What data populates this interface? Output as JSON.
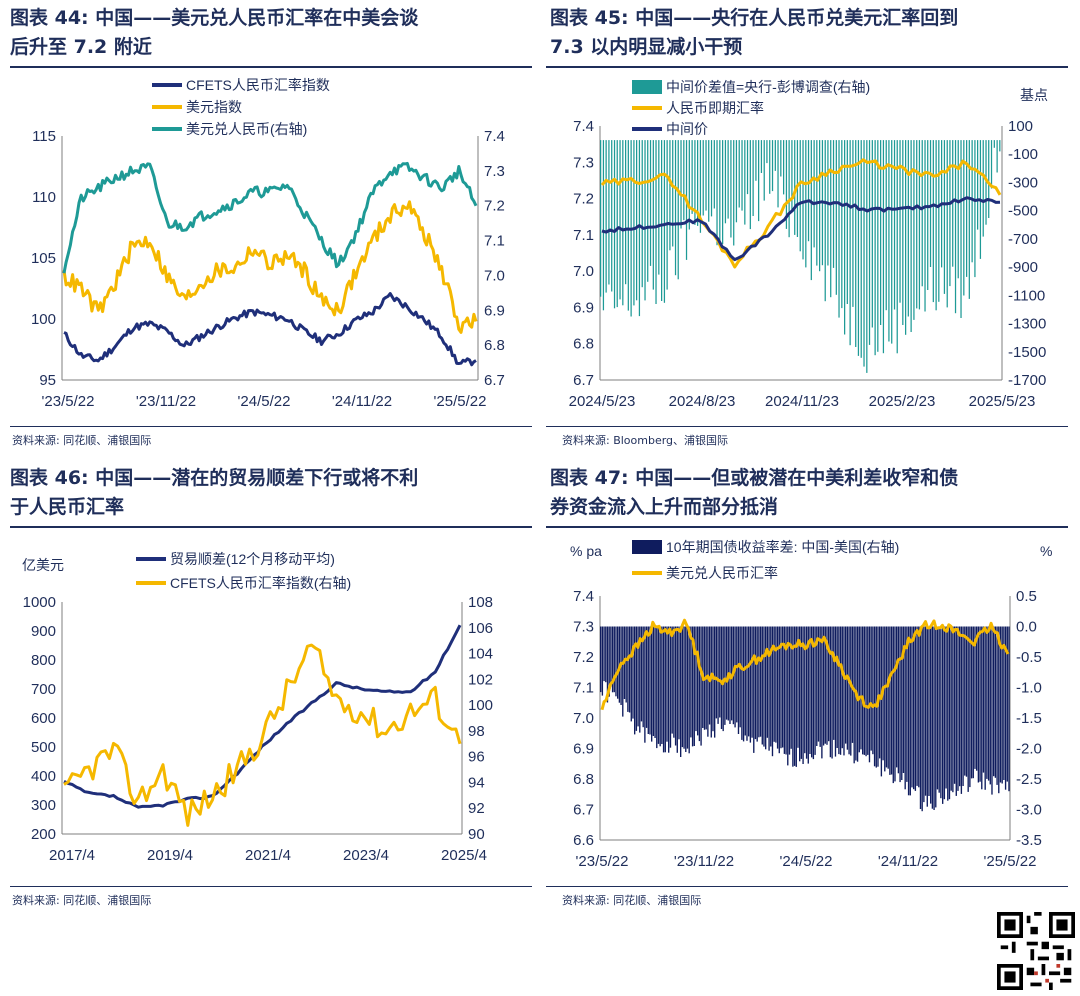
{
  "charts": [
    {
      "title_prefix": "图表 44:",
      "title_line1": "中国——美元兑人民币汇率在中美会谈",
      "title_line2": "后升至 7.2 附近",
      "source": "资料来源: 同花顺、浦银国际",
      "legend": [
        {
          "label": "CFETS人民币汇率指数",
          "color": "#1f2f7a"
        },
        {
          "label": "美元指数",
          "color": "#f5b800"
        },
        {
          "label": "美元兑人民币(右轴)",
          "color": "#1e9a96"
        }
      ],
      "left_ticks": [
        "115",
        "110",
        "105",
        "100",
        "95"
      ],
      "right_ticks": [
        "7.4",
        "7.3",
        "7.2",
        "7.1",
        "7.0",
        "6.9",
        "6.8",
        "6.7"
      ],
      "x_ticks": [
        "'23/5/22",
        "'23/11/22",
        "'24/5/22",
        "'24/11/22",
        "'25/5/22"
      ]
    },
    {
      "title_prefix": "图表 45:",
      "title_line1": "中国——央行在人民币兑美元汇率回到",
      "title_line2": "7.3 以内明显减小干预",
      "source": "资料来源: Bloomberg、浦银国际",
      "legend": [
        {
          "label": "中间价差值=央行-彭博调查(右轴)",
          "color": "#1e9a96"
        },
        {
          "label": "人民币即期汇率",
          "color": "#f5b800"
        },
        {
          "label": "中间价",
          "color": "#1f2f7a"
        }
      ],
      "right_unit": "基点",
      "left_ticks": [
        "7.4",
        "7.3",
        "7.2",
        "7.1",
        "7.0",
        "6.9",
        "6.8",
        "6.7"
      ],
      "right_ticks": [
        "100",
        "-100",
        "-300",
        "-500",
        "-700",
        "-900",
        "-1100",
        "-1300",
        "-1500",
        "-1700"
      ],
      "x_ticks": [
        "2024/5/23",
        "2024/8/23",
        "2024/11/23",
        "2025/2/23",
        "2025/5/23"
      ]
    },
    {
      "title_prefix": "图表 46:",
      "title_line1": "中国——潜在的贸易顺差下行或将不利",
      "title_line2": "于人民币汇率",
      "source": "资料来源: 同花顺、浦银国际",
      "left_unit": "亿美元",
      "legend": [
        {
          "label": "贸易顺差(12个月移动平均)",
          "color": "#1f2f7a"
        },
        {
          "label": "CFETS人民币汇率指数(右轴)",
          "color": "#f5b800"
        }
      ],
      "left_ticks": [
        "1000",
        "900",
        "800",
        "700",
        "600",
        "500",
        "400",
        "300",
        "200"
      ],
      "right_ticks": [
        "108",
        "106",
        "104",
        "102",
        "100",
        "98",
        "96",
        "94",
        "92",
        "90"
      ],
      "x_ticks": [
        "2017/4",
        "2019/4",
        "2021/4",
        "2023/4",
        "2025/4"
      ]
    },
    {
      "title_prefix": "图表 47:",
      "title_line1": "中国——但或被潜在中美利差收窄和债",
      "title_line2": "券资金流入上升而部分抵消",
      "source": "资料来源: 同花顺、浦银国际",
      "left_unit": "% pa",
      "right_unit": "%",
      "legend": [
        {
          "label": "10年期国债收益率差: 中国-美国(右轴)",
          "color": "#0f1c5e"
        },
        {
          "label": "美元兑人民币汇率",
          "color": "#f5b800"
        }
      ],
      "left_ticks": [
        "7.4",
        "7.3",
        "7.2",
        "7.1",
        "7.0",
        "6.9",
        "6.8",
        "6.7",
        "6.6"
      ],
      "right_ticks": [
        "0.5",
        "0.0",
        "-0.5",
        "-1.0",
        "-1.5",
        "-2.0",
        "-2.5",
        "-3.0",
        "-3.5"
      ],
      "x_ticks": [
        "'23/5/22",
        "'23/11/22",
        "'24/5/22",
        "'24/11/22",
        "'25/5/22"
      ]
    }
  ],
  "chart_data": [
    {
      "type": "line",
      "x": [
        "2023-05",
        "2023-06",
        "2023-07",
        "2023-08",
        "2023-09",
        "2023-10",
        "2023-11",
        "2023-12",
        "2024-01",
        "2024-02",
        "2024-03",
        "2024-04",
        "2024-05",
        "2024-06",
        "2024-07",
        "2024-08",
        "2024-09",
        "2024-10",
        "2024-11",
        "2024-12",
        "2025-01",
        "2025-02",
        "2025-03",
        "2025-04",
        "2025-05"
      ],
      "series": [
        {
          "name": "CFETS人民币汇率指数",
          "axis": "left",
          "values": [
            98.8,
            97.0,
            96.6,
            97.8,
            99.3,
            99.6,
            99.0,
            97.8,
            98.6,
            99.4,
            100.1,
            100.6,
            100.3,
            100.0,
            99.0,
            98.2,
            98.8,
            99.9,
            100.6,
            101.9,
            101.0,
            99.9,
            98.6,
            96.3,
            96.6
          ]
        },
        {
          "name": "美元指数",
          "axis": "left",
          "values": [
            103.5,
            102.5,
            100.5,
            103.0,
            106.0,
            106.5,
            103.5,
            101.5,
            103.0,
            104.0,
            104.2,
            105.8,
            104.5,
            105.2,
            104.0,
            101.5,
            100.8,
            103.8,
            106.5,
            108.5,
            109.5,
            107.0,
            104.0,
            99.5,
            99.8
          ]
        },
        {
          "name": "美元兑人民币(右轴)",
          "axis": "right",
          "values": [
            7.02,
            7.22,
            7.25,
            7.28,
            7.3,
            7.31,
            7.15,
            7.14,
            7.17,
            7.19,
            7.21,
            7.24,
            7.24,
            7.26,
            7.18,
            7.1,
            7.03,
            7.12,
            7.24,
            7.3,
            7.31,
            7.28,
            7.25,
            7.3,
            7.2
          ]
        }
      ],
      "left_ylim": [
        95,
        115
      ],
      "right_ylim": [
        6.7,
        7.4
      ]
    },
    {
      "type": "line",
      "x": [
        "2024-05",
        "2024-06",
        "2024-07",
        "2024-08",
        "2024-09",
        "2024-10",
        "2024-11",
        "2024-12",
        "2025-01",
        "2025-02",
        "2025-03",
        "2025-04",
        "2025-05"
      ],
      "series": [
        {
          "name": "中间价差值=央行-彭博调查(右轴)",
          "axis": "right",
          "type": "bar",
          "values": [
            -1200,
            -1150,
            -1000,
            -500,
            -700,
            -300,
            -650,
            -1100,
            -1450,
            -1300,
            -1050,
            -1100,
            -80
          ]
        },
        {
          "name": "人民币即期汇率",
          "axis": "left",
          "values": [
            7.24,
            7.25,
            7.26,
            7.14,
            7.02,
            7.12,
            7.24,
            7.28,
            7.3,
            7.28,
            7.26,
            7.3,
            7.21
          ]
        },
        {
          "name": "中间价",
          "axis": "left",
          "values": [
            7.11,
            7.12,
            7.13,
            7.14,
            7.03,
            7.1,
            7.19,
            7.19,
            7.17,
            7.17,
            7.18,
            7.2,
            7.19
          ]
        }
      ],
      "left_ylim": [
        6.7,
        7.4
      ],
      "right_ylim": [
        -1700,
        100
      ]
    },
    {
      "type": "line",
      "x": [
        "2017-04",
        "2017-10",
        "2018-04",
        "2018-10",
        "2019-04",
        "2019-10",
        "2020-04",
        "2020-10",
        "2021-04",
        "2021-10",
        "2022-04",
        "2022-10",
        "2023-04",
        "2023-10",
        "2024-04",
        "2024-10",
        "2025-04"
      ],
      "series": [
        {
          "name": "贸易顺差(12个月移动平均)",
          "axis": "left",
          "values": [
            380,
            340,
            330,
            290,
            300,
            320,
            330,
            410,
            500,
            580,
            650,
            720,
            700,
            690,
            690,
            760,
            920
          ]
        },
        {
          "name": "CFETS人民币汇率指数(右轴)",
          "axis": "right",
          "values": [
            93,
            95,
            96.5,
            92.5,
            95,
            91.5,
            93,
            95,
            97.5,
            101,
            104.5,
            100.5,
            99.5,
            98,
            99.5,
            100.5,
            97
          ]
        }
      ],
      "left_ylim": [
        200,
        1000
      ],
      "right_ylim": [
        90,
        108
      ]
    },
    {
      "type": "line",
      "x": [
        "2023-05",
        "2023-06",
        "2023-07",
        "2023-08",
        "2023-09",
        "2023-10",
        "2023-11",
        "2023-12",
        "2024-01",
        "2024-02",
        "2024-03",
        "2024-04",
        "2024-05",
        "2024-06",
        "2024-07",
        "2024-08",
        "2024-09",
        "2024-10",
        "2024-11",
        "2024-12",
        "2025-01",
        "2025-02",
        "2025-03",
        "2025-04",
        "2025-05"
      ],
      "series": [
        {
          "name": "10年期国债收益率差: 中国-美国(右轴)",
          "axis": "right",
          "type": "bar",
          "values": [
            -1.0,
            -1.2,
            -1.6,
            -1.9,
            -1.9,
            -2.0,
            -1.8,
            -1.6,
            -1.7,
            -1.9,
            -2.0,
            -2.2,
            -2.1,
            -2.0,
            -2.0,
            -2.1,
            -2.2,
            -2.4,
            -2.6,
            -2.9,
            -2.8,
            -2.7,
            -2.5,
            -2.6,
            -2.7
          ]
        },
        {
          "name": "美元兑人民币汇率",
          "axis": "left",
          "values": [
            7.03,
            7.17,
            7.23,
            7.3,
            7.28,
            7.31,
            7.14,
            7.12,
            7.16,
            7.19,
            7.22,
            7.24,
            7.24,
            7.26,
            7.18,
            7.08,
            7.03,
            7.12,
            7.24,
            7.3,
            7.31,
            7.28,
            7.25,
            7.3,
            7.21
          ]
        }
      ],
      "left_ylim": [
        6.6,
        7.4
      ],
      "right_ylim": [
        -3.5,
        0.5
      ]
    }
  ]
}
